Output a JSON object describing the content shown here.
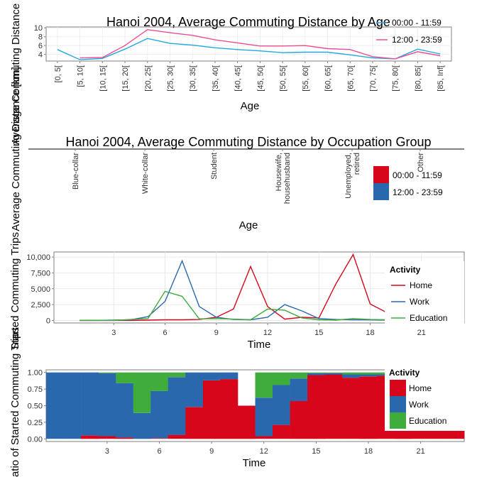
{
  "chart_data": [
    {
      "type": "line",
      "title": "Hanoi 2004, Average Commuting Distance by Age",
      "xlabel": "Age",
      "ylabel": "Average Commuting Distance [km]",
      "categories": [
        "[0, 5[",
        "[5, 10[",
        "[10, 15[",
        "[15, 20[",
        "[20, 25[",
        "[25, 30[",
        "[30, 35[",
        "[35, 40[",
        "[40, 45[",
        "[45, 50[",
        "[50, 55[",
        "[55, 60[",
        "[60, 65[",
        "[65, 70[",
        "[70, 75[",
        "[75, 80[",
        "[80, 85[",
        "[85, Inf["
      ],
      "yticks": [
        "4",
        "6",
        "8",
        "10"
      ],
      "ylim": [
        2.5,
        10.2
      ],
      "legend_position": "top-right",
      "series": [
        {
          "name": "00:00 - 11:59",
          "color": "#1fa9e1",
          "values": [
            5.1,
            2.8,
            3.1,
            5.2,
            7.6,
            6.5,
            6.1,
            5.5,
            5.1,
            4.8,
            4.4,
            4.5,
            4.5,
            3.9,
            3.2,
            3.0,
            5.2,
            4.1
          ]
        },
        {
          "name": "12:00 - 23:59",
          "color": "#ef4d93",
          "values": [
            null,
            3.2,
            3.3,
            6.0,
            9.6,
            8.9,
            8.3,
            7.3,
            6.6,
            5.9,
            5.9,
            6.0,
            5.3,
            5.1,
            3.5,
            3.0,
            4.6,
            3.7
          ]
        }
      ]
    },
    {
      "type": "bar",
      "title": "Hanoi 2004, Average Commuting Distance by Occupation Group",
      "xlabel": "Age",
      "ylabel": "Average Commuting Distance [km]",
      "categories": [
        "Blue-collar",
        "White-collar",
        "Student",
        "Housewife, househusband",
        "Unemployed, retired",
        "Other"
      ],
      "category_labels": [
        [
          "Blue-collar"
        ],
        [
          "White-collar"
        ],
        [
          "Student"
        ],
        [
          "Housewife,",
          "househusband"
        ],
        [
          "Unemployed,",
          "retired"
        ],
        [
          "Other"
        ]
      ],
      "legend_position": "right",
      "series": [
        {
          "name": "00:00 - 11:59",
          "color": "#d7061b"
        },
        {
          "name": "12:00 - 23:59",
          "color": "#2a68ae"
        }
      ]
    },
    {
      "type": "line",
      "xlabel": "Time",
      "ylabel": "Started Commuting Trips",
      "x": [
        0,
        1,
        2,
        3,
        4,
        5,
        6,
        7,
        8,
        9,
        10,
        11,
        12,
        13,
        14,
        15,
        16,
        17,
        18,
        19,
        20,
        21,
        22,
        23
      ],
      "xticks": [
        3,
        6,
        9,
        12,
        15,
        18,
        21
      ],
      "yticks": [
        "0",
        "2,500",
        "5,000",
        "7,500",
        "10,000"
      ],
      "ylim": [
        -400,
        10800
      ],
      "legend_title": "Activity",
      "legend_position": "right",
      "series": [
        {
          "name": "Home",
          "color": "#d7061b",
          "values": [
            null,
            0,
            0,
            0,
            0,
            50,
            100,
            100,
            150,
            500,
            1800,
            8500,
            2200,
            200,
            500,
            400,
            5800,
            10400,
            2600,
            1200,
            900,
            400,
            250,
            150
          ]
        },
        {
          "name": "Work",
          "color": "#2a68ae",
          "values": [
            null,
            0,
            0,
            50,
            100,
            600,
            3000,
            9400,
            2200,
            500,
            150,
            100,
            500,
            2500,
            1500,
            300,
            150,
            100,
            80,
            50,
            30,
            20,
            10,
            5
          ]
        },
        {
          "name": "Education",
          "color": "#3fac3b",
          "values": [
            null,
            0,
            0,
            0,
            150,
            300,
            4600,
            3800,
            250,
            300,
            200,
            100,
            1800,
            1600,
            400,
            100,
            50,
            300,
            150,
            100,
            50,
            30,
            20,
            10
          ]
        }
      ]
    },
    {
      "type": "area",
      "xlabel": "Time",
      "ylabel": "Ratio of Started Commuting Trips",
      "x": [
        0,
        1,
        2,
        3,
        4,
        5,
        6,
        7,
        8,
        9,
        10,
        11,
        12,
        13,
        14,
        15,
        16,
        17,
        18,
        19,
        20,
        21,
        22,
        23
      ],
      "xticks": [
        3,
        6,
        9,
        12,
        15,
        18,
        21
      ],
      "yticks": [
        "0.00",
        "0.25",
        "0.50",
        "0.75",
        "1.00"
      ],
      "ylim": [
        -0.04,
        1.04
      ],
      "legend_title": "Activity",
      "legend_position": "top-right",
      "series": [
        {
          "name": "Home",
          "color": "#d7061b",
          "values": [
            0.0,
            0.0,
            0.05,
            0.04,
            0.02,
            0.0,
            0.01,
            0.06,
            0.48,
            0.88,
            0.9,
            0.5,
            0.04,
            0.21,
            0.57,
            0.96,
            0.97,
            0.92,
            0.94,
            0.95,
            0.96,
            0.97,
            0.98,
            0.98
          ]
        },
        {
          "name": "Work",
          "color": "#2a68ae",
          "values": [
            1.0,
            1.0,
            0.95,
            0.95,
            0.82,
            0.39,
            0.71,
            0.87,
            0.52,
            0.12,
            0.1,
            0.0,
            0.58,
            0.6,
            0.34,
            0.03,
            0.02,
            0.05,
            0.03,
            0.02,
            0.01,
            0.01,
            0.01,
            0.01
          ]
        },
        {
          "name": "Education",
          "color": "#3fac3b",
          "values": [
            0.0,
            0.0,
            0.0,
            0.01,
            0.16,
            0.61,
            0.28,
            0.07,
            0.0,
            0.0,
            0.0,
            0.0,
            0.38,
            0.19,
            0.09,
            0.01,
            0.01,
            0.03,
            0.03,
            0.03,
            0.03,
            0.02,
            0.01,
            0.01
          ]
        }
      ]
    }
  ]
}
